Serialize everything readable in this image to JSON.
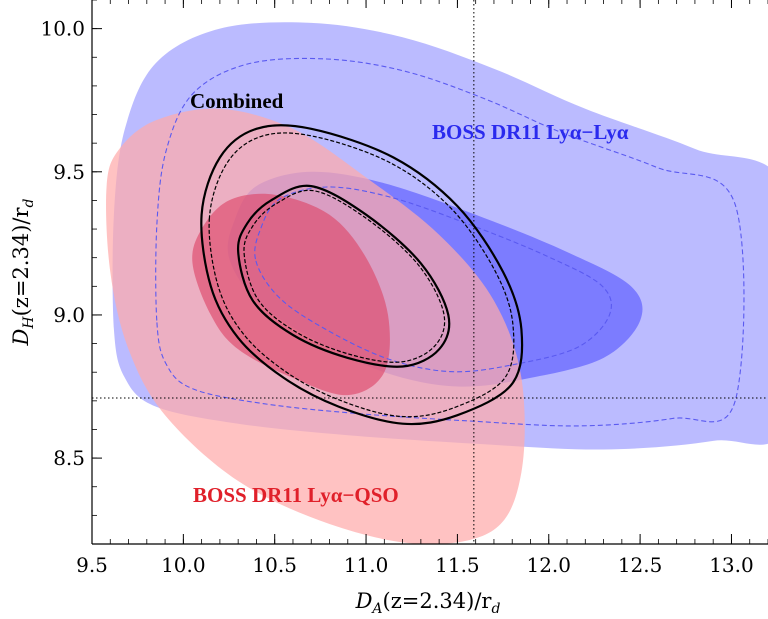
{
  "chart_data": {
    "type": "contour",
    "x_axis": {
      "label_main": "D",
      "label_sub": "A",
      "label_arg": "(z=2.34)/r",
      "label_sub2": "d",
      "range": [
        9.5,
        13.2
      ],
      "ticks": [
        "9.5",
        "10.0",
        "10.5",
        "11.0",
        "11.5",
        "12.0",
        "12.5",
        "13.0"
      ],
      "tick_values": [
        9.5,
        10.0,
        10.5,
        11.0,
        11.5,
        12.0,
        12.5,
        13.0
      ]
    },
    "y_axis": {
      "label_main": "D",
      "label_sub": "H",
      "label_arg": "(z=2.34)/r",
      "label_sub2": "d",
      "range": [
        8.2,
        10.1
      ],
      "ticks": [
        "8.5",
        "9.0",
        "9.5",
        "10.0"
      ],
      "tick_values": [
        8.5,
        9.0,
        9.5,
        10.0
      ]
    },
    "reference_lines": {
      "x": 11.59,
      "y": 8.71
    },
    "series": [
      {
        "name": "BOSS DR11 Lyα−Lyα",
        "label_text": "BOSS DR11 Lyα−Lyα",
        "color": "#5a5aff",
        "contours": [
          {
            "level": "95%",
            "fill": "#b7b7ff",
            "points": [
              [
                9.62,
                8.95
              ],
              [
                9.68,
                8.78
              ],
              [
                9.85,
                8.68
              ],
              [
                10.3,
                8.62
              ],
              [
                10.9,
                8.58
              ],
              [
                11.6,
                8.55
              ],
              [
                12.3,
                8.53
              ],
              [
                12.9,
                8.56
              ],
              [
                13.3,
                8.63
              ],
              [
                13.3,
                9.43
              ],
              [
                12.8,
                9.58
              ],
              [
                12.2,
                9.72
              ],
              [
                11.7,
                9.86
              ],
              [
                11.2,
                9.97
              ],
              [
                10.7,
                10.02
              ],
              [
                10.2,
                10.0
              ],
              [
                9.85,
                9.88
              ],
              [
                9.68,
                9.65
              ],
              [
                9.62,
                9.35
              ]
            ]
          },
          {
            "level": "68%",
            "fill": "#7878ff",
            "points": [
              [
                10.25,
                9.2
              ],
              [
                10.4,
                9.05
              ],
              [
                10.7,
                8.92
              ],
              [
                11.1,
                8.8
              ],
              [
                11.5,
                8.75
              ],
              [
                11.9,
                8.78
              ],
              [
                12.3,
                8.85
              ],
              [
                12.5,
                8.98
              ],
              [
                12.45,
                9.1
              ],
              [
                12.1,
                9.22
              ],
              [
                11.6,
                9.35
              ],
              [
                11.1,
                9.46
              ],
              [
                10.7,
                9.5
              ],
              [
                10.4,
                9.45
              ],
              [
                10.28,
                9.33
              ]
            ]
          }
        ]
      },
      {
        "name": "BOSS DR11 Lyα−QSO",
        "label_text": "BOSS DR11 Lyα−QSO",
        "color": "#e0202a",
        "contours": [
          {
            "level": "95%",
            "fill": "#ffaaaa",
            "points": [
              [
                9.58,
                9.45
              ],
              [
                9.6,
                9.15
              ],
              [
                9.7,
                8.88
              ],
              [
                9.9,
                8.65
              ],
              [
                10.3,
                8.42
              ],
              [
                10.8,
                8.27
              ],
              [
                11.3,
                8.2
              ],
              [
                11.7,
                8.25
              ],
              [
                11.85,
                8.45
              ],
              [
                11.85,
                8.78
              ],
              [
                11.7,
                9.05
              ],
              [
                11.4,
                9.28
              ],
              [
                11.0,
                9.48
              ],
              [
                10.6,
                9.65
              ],
              [
                10.2,
                9.72
              ],
              [
                9.85,
                9.68
              ],
              [
                9.65,
                9.58
              ]
            ]
          },
          {
            "level": "68%",
            "fill": "#dd4466",
            "points": [
              [
                10.05,
                9.18
              ],
              [
                10.15,
                9.0
              ],
              [
                10.3,
                8.88
              ],
              [
                10.6,
                8.78
              ],
              [
                10.9,
                8.72
              ],
              [
                11.1,
                8.8
              ],
              [
                11.12,
                9.0
              ],
              [
                11.0,
                9.2
              ],
              [
                10.8,
                9.35
              ],
              [
                10.5,
                9.42
              ],
              [
                10.25,
                9.4
              ],
              [
                10.1,
                9.3
              ]
            ]
          }
        ]
      },
      {
        "name": "Combined",
        "label_text": "Combined",
        "color": "#000000",
        "contours": [
          {
            "level": "95%",
            "style": "solid",
            "points": [
              [
                10.1,
                9.35
              ],
              [
                10.15,
                9.1
              ],
              [
                10.3,
                8.92
              ],
              [
                10.55,
                8.78
              ],
              [
                10.85,
                8.68
              ],
              [
                11.2,
                8.62
              ],
              [
                11.5,
                8.65
              ],
              [
                11.8,
                8.76
              ],
              [
                11.85,
                8.95
              ],
              [
                11.75,
                9.15
              ],
              [
                11.5,
                9.38
              ],
              [
                11.15,
                9.55
              ],
              [
                10.7,
                9.65
              ],
              [
                10.4,
                9.65
              ],
              [
                10.2,
                9.55
              ]
            ]
          },
          {
            "level": "68%",
            "style": "solid",
            "points": [
              [
                10.3,
                9.22
              ],
              [
                10.38,
                9.05
              ],
              [
                10.6,
                8.93
              ],
              [
                10.9,
                8.85
              ],
              [
                11.2,
                8.82
              ],
              [
                11.4,
                8.88
              ],
              [
                11.45,
                9.0
              ],
              [
                11.3,
                9.18
              ],
              [
                11.0,
                9.35
              ],
              [
                10.7,
                9.45
              ],
              [
                10.48,
                9.4
              ],
              [
                10.35,
                9.32
              ]
            ]
          }
        ]
      }
    ]
  }
}
